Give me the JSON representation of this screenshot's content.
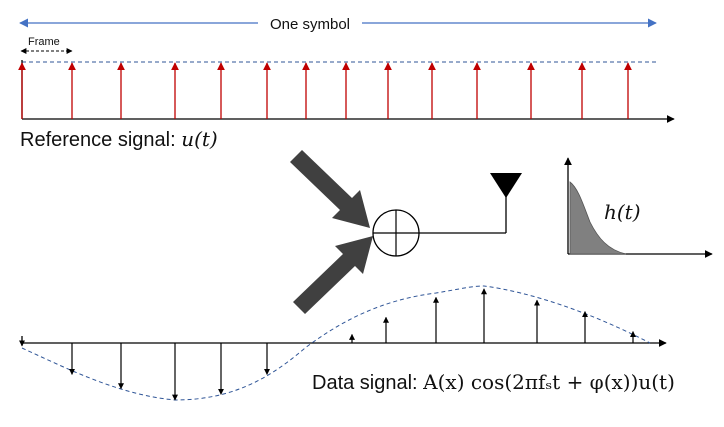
{
  "labels": {
    "one_symbol": "One symbol",
    "frame": "Frame",
    "reference_signal": "Reference signal: ",
    "reference_formula": "u(t)",
    "channel_response": "h(t)",
    "data_signal": "Data signal: ",
    "data_formula": "A(x) cos(2πfₛt + φ(x))u(t)"
  },
  "reference_pulses": [
    1,
    1,
    1,
    1,
    1,
    1,
    1,
    1,
    1,
    1,
    1,
    1,
    1,
    1
  ],
  "data_pulses": [
    -0.05,
    -0.55,
    -0.8,
    -1.0,
    -0.9,
    -0.55,
    0.15,
    0.45,
    0.8,
    0.95,
    0.75,
    0.55,
    0.2
  ],
  "colors": {
    "symbol_arrow": "#4472c4",
    "reference_pulse": "#c00000",
    "envelope": "#2f5597",
    "block_arrow": "#404040",
    "impulse_fill": "#808080"
  },
  "icons": {
    "combiner": "circle-plus-icon",
    "antenna": "antenna-icon"
  }
}
